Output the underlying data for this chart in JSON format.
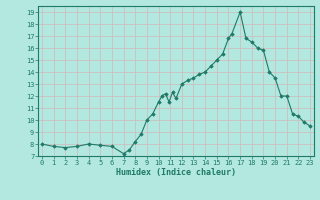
{
  "x": [
    0,
    1,
    2,
    3,
    4,
    5,
    6,
    7,
    7.5,
    8,
    8.5,
    9,
    9.5,
    10,
    10.3,
    10.6,
    10.9,
    11.2,
    11.5,
    12,
    12.5,
    13,
    13.5,
    14,
    14.5,
    15,
    15.5,
    16,
    16.3,
    17,
    17.5,
    18,
    18.5,
    19,
    19.5,
    20,
    20.5,
    21,
    21.5,
    22,
    22.5,
    23
  ],
  "y": [
    8.0,
    7.8,
    7.7,
    7.8,
    8.0,
    7.9,
    7.8,
    7.2,
    7.5,
    8.2,
    8.8,
    10.0,
    10.5,
    11.5,
    12.0,
    12.2,
    11.5,
    12.3,
    11.8,
    13.0,
    13.3,
    13.5,
    13.8,
    14.0,
    14.5,
    15.0,
    15.5,
    16.8,
    17.2,
    19.0,
    16.8,
    16.5,
    16.0,
    15.8,
    14.0,
    13.5,
    12.0,
    12.0,
    10.5,
    10.3,
    9.8,
    9.5
  ],
  "line_color": "#1f7a68",
  "marker_color": "#1f7a68",
  "bg_color": "#b2e8e0",
  "grid_color": "#d0b8b8",
  "xlabel": "Humidex (Indice chaleur)",
  "xlabel_color": "#1f7a68",
  "ylim": [
    7,
    19.5
  ],
  "xlim": [
    -0.3,
    23.3
  ],
  "yticks": [
    7,
    8,
    9,
    10,
    11,
    12,
    13,
    14,
    15,
    16,
    17,
    18,
    19
  ],
  "xticks": [
    0,
    1,
    2,
    3,
    4,
    5,
    6,
    7,
    8,
    9,
    10,
    11,
    12,
    13,
    14,
    15,
    16,
    17,
    18,
    19,
    20,
    21,
    22,
    23
  ],
  "tick_fontsize": 5.0,
  "xlabel_fontsize": 6.0
}
